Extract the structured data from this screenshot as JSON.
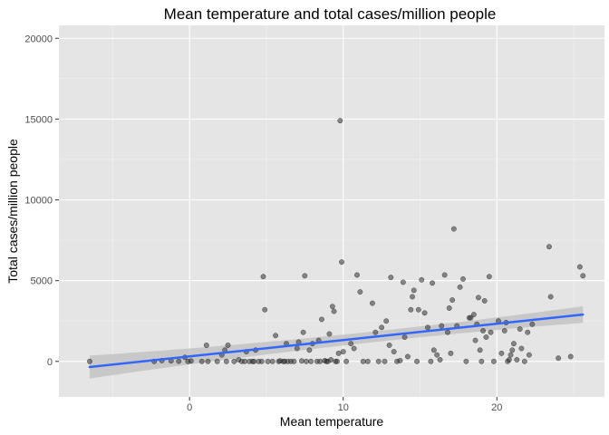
{
  "chart_data": {
    "type": "scatter",
    "title": "Mean temperature and total cases/million people",
    "xlabel": "Mean temperature",
    "ylabel": "Total cases/million people",
    "xlim": [
      -8.5,
      27
    ],
    "ylim": [
      -2200,
      20800
    ],
    "x_ticks": [
      0,
      10,
      20
    ],
    "y_ticks": [
      0,
      5000,
      10000,
      15000,
      20000
    ],
    "x_tick_labels": [
      "0",
      "10",
      "20"
    ],
    "y_tick_labels": [
      "0",
      "5000",
      "10000",
      "15000",
      "20000"
    ],
    "grid": true,
    "legend": "none",
    "colors": {
      "panel": "#e5e5e5",
      "grid_major": "#ffffff",
      "point": "#333333",
      "fit_line": "#3366ff",
      "ribbon": "#bdbdbd"
    },
    "points": [
      [
        -6.5,
        0
      ],
      [
        -2.3,
        0
      ],
      [
        -1.8,
        50
      ],
      [
        -1.2,
        30
      ],
      [
        -0.7,
        10
      ],
      [
        -0.3,
        250
      ],
      [
        -0.1,
        0
      ],
      [
        0.1,
        30
      ],
      [
        0.8,
        0
      ],
      [
        1.2,
        0
      ],
      [
        1.1,
        1000
      ],
      [
        1.8,
        0
      ],
      [
        2.1,
        400
      ],
      [
        2.3,
        700
      ],
      [
        2.5,
        1000
      ],
      [
        2.4,
        0
      ],
      [
        2.9,
        0
      ],
      [
        3.2,
        100
      ],
      [
        3.4,
        0
      ],
      [
        3.6,
        0
      ],
      [
        3.7,
        600
      ],
      [
        3.9,
        0
      ],
      [
        4.1,
        0
      ],
      [
        4.2,
        0
      ],
      [
        4.3,
        700
      ],
      [
        4.5,
        0
      ],
      [
        4.7,
        0
      ],
      [
        4.8,
        5250
      ],
      [
        4.9,
        3200
      ],
      [
        5.1,
        0
      ],
      [
        5.4,
        0
      ],
      [
        5.6,
        1600
      ],
      [
        5.8,
        0
      ],
      [
        5.9,
        30
      ],
      [
        6.1,
        0
      ],
      [
        6.2,
        0
      ],
      [
        6.3,
        1100
      ],
      [
        6.4,
        0
      ],
      [
        6.6,
        0
      ],
      [
        6.8,
        0
      ],
      [
        7.0,
        800
      ],
      [
        7.1,
        1200
      ],
      [
        7.3,
        30
      ],
      [
        7.4,
        1800
      ],
      [
        7.5,
        5300
      ],
      [
        7.6,
        0
      ],
      [
        7.8,
        700
      ],
      [
        7.9,
        0
      ],
      [
        8.0,
        1100
      ],
      [
        8.3,
        0
      ],
      [
        8.4,
        1300
      ],
      [
        8.5,
        0
      ],
      [
        8.6,
        2600
      ],
      [
        8.8,
        50
      ],
      [
        8.9,
        0
      ],
      [
        9.0,
        0
      ],
      [
        9.1,
        1700
      ],
      [
        9.2,
        100
      ],
      [
        9.3,
        3400
      ],
      [
        9.4,
        3100
      ],
      [
        9.5,
        0
      ],
      [
        9.6,
        0
      ],
      [
        9.7,
        500
      ],
      [
        9.8,
        14900
      ],
      [
        9.9,
        6150
      ],
      [
        10.0,
        600
      ],
      [
        10.2,
        0
      ],
      [
        10.5,
        1100
      ],
      [
        10.7,
        800
      ],
      [
        10.9,
        5350
      ],
      [
        11.1,
        4300
      ],
      [
        11.3,
        0
      ],
      [
        11.6,
        0
      ],
      [
        11.9,
        3600
      ],
      [
        12.1,
        1800
      ],
      [
        12.3,
        0
      ],
      [
        12.5,
        2100
      ],
      [
        12.7,
        0
      ],
      [
        12.8,
        2500
      ],
      [
        13.0,
        1000
      ],
      [
        13.1,
        5200
      ],
      [
        13.3,
        600
      ],
      [
        13.5,
        0
      ],
      [
        13.7,
        50
      ],
      [
        13.9,
        4900
      ],
      [
        14.0,
        1500
      ],
      [
        14.2,
        300
      ],
      [
        14.4,
        3200
      ],
      [
        14.5,
        4000
      ],
      [
        14.6,
        4400
      ],
      [
        14.8,
        0
      ],
      [
        14.9,
        3200
      ],
      [
        15.1,
        5050
      ],
      [
        15.3,
        3000
      ],
      [
        15.5,
        2100
      ],
      [
        15.7,
        0
      ],
      [
        15.8,
        4850
      ],
      [
        15.9,
        700
      ],
      [
        16.1,
        400
      ],
      [
        16.3,
        100
      ],
      [
        16.4,
        2200
      ],
      [
        16.6,
        5350
      ],
      [
        16.8,
        1800
      ],
      [
        16.9,
        3300
      ],
      [
        17.0,
        500
      ],
      [
        17.1,
        3800
      ],
      [
        17.2,
        8200
      ],
      [
        17.4,
        2200
      ],
      [
        17.6,
        4600
      ],
      [
        17.8,
        5100
      ],
      [
        18.0,
        0
      ],
      [
        18.2,
        2700
      ],
      [
        18.3,
        2700
      ],
      [
        18.5,
        2900
      ],
      [
        18.6,
        1300
      ],
      [
        18.7,
        2300
      ],
      [
        18.8,
        3950
      ],
      [
        18.9,
        700
      ],
      [
        19.0,
        0
      ],
      [
        19.1,
        1900
      ],
      [
        19.2,
        3750
      ],
      [
        19.3,
        1500
      ],
      [
        19.5,
        5250
      ],
      [
        19.6,
        1800
      ],
      [
        19.8,
        0
      ],
      [
        20.1,
        2500
      ],
      [
        20.3,
        500
      ],
      [
        20.5,
        1900
      ],
      [
        20.6,
        2400
      ],
      [
        20.7,
        0
      ],
      [
        20.8,
        100
      ],
      [
        20.9,
        400
      ],
      [
        21.0,
        700
      ],
      [
        21.1,
        1100
      ],
      [
        21.3,
        100
      ],
      [
        21.5,
        2000
      ],
      [
        21.6,
        800
      ],
      [
        21.8,
        0
      ],
      [
        22.0,
        1800
      ],
      [
        22.1,
        400
      ],
      [
        22.3,
        2300
      ],
      [
        23.4,
        7100
      ],
      [
        23.5,
        4000
      ],
      [
        24.0,
        200
      ],
      [
        24.8,
        300
      ],
      [
        25.4,
        5850
      ],
      [
        25.6,
        5300
      ]
    ],
    "fit": {
      "method": "linear",
      "x_range": [
        -6.5,
        25.6
      ],
      "y_range": [
        -350,
        2900
      ]
    }
  }
}
